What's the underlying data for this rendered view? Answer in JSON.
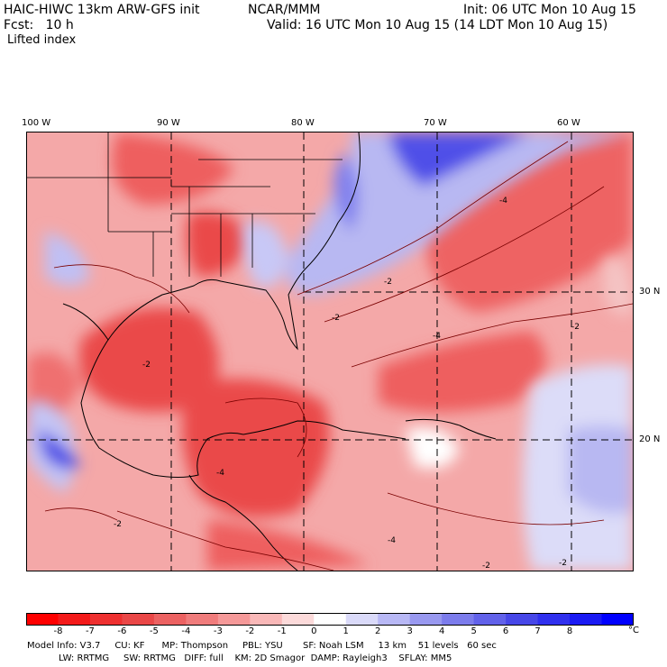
{
  "header": {
    "title": "HAIC-HIWC 13km ARW-GFS init",
    "org": "NCAR/MMM",
    "init": "Init: 06 UTC Mon 10 Aug 15",
    "fcst": "Fcst:   10 h",
    "valid": "Valid: 16 UTC Mon 10 Aug 15 (14 LDT Mon 10 Aug 15)",
    "field": "Lifted index"
  },
  "map": {
    "lon_labels": [
      "100 W",
      "90 W",
      "80 W",
      "70 W",
      "60 W"
    ],
    "lat_labels": [
      "30 N",
      "20 N"
    ],
    "contour_labels": [
      "-2",
      "-2",
      "-4",
      "-4",
      "-2",
      "-4",
      "-2",
      "-4",
      "-2",
      "-2",
      "-2"
    ]
  },
  "colorbar": {
    "ticks": [
      "-8",
      "-7",
      "-6",
      "-5",
      "-4",
      "-3",
      "-2",
      "-1",
      "0",
      "1",
      "2",
      "3",
      "4",
      "5",
      "6",
      "7",
      "8"
    ],
    "unit": "°C",
    "colors": [
      "#ff0000",
      "#f31a1a",
      "#ee3030",
      "#ea4747",
      "#ec6262",
      "#f07c7c",
      "#f59999",
      "#f9b8b8",
      "#fcdada",
      "#ffffff",
      "#dadaf9",
      "#b8b8f5",
      "#9999f0",
      "#7c7cec",
      "#6262ea",
      "#4747e8",
      "#3030ee",
      "#1a1af3",
      "#0000ff"
    ]
  },
  "footer": {
    "line1": "Model Info: V3.7     CU: KF      MP: Thompson     PBL: YSU       SF: Noah LSM     13 km    51 levels   60 sec",
    "line2": "           LW: RRTMG     SW: RRTMG   DIFF: full    KM: 2D Smagor  DAMP: Rayleigh3    SFLAY: MM5"
  }
}
